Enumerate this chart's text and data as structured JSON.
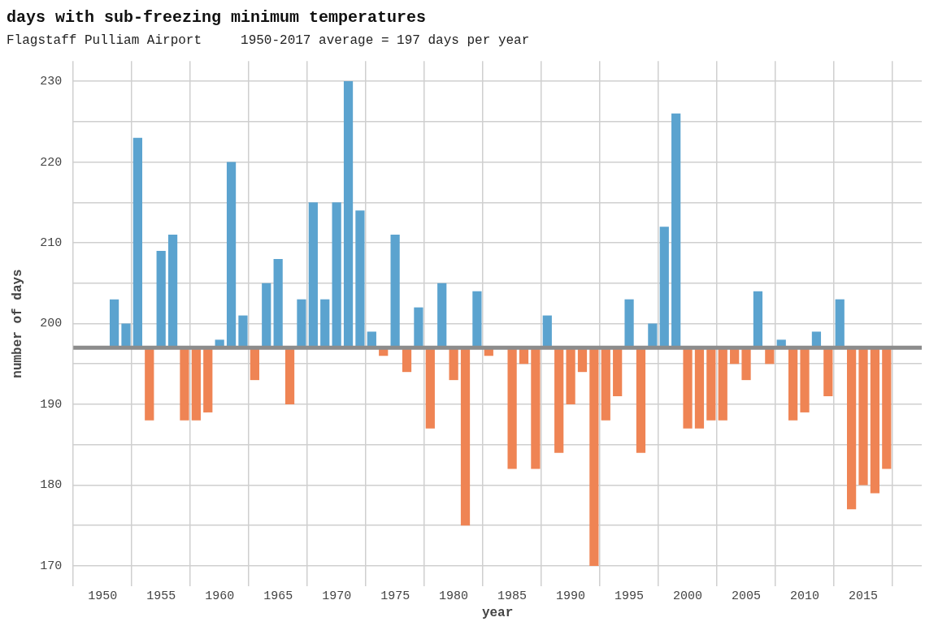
{
  "chart_data": {
    "type": "bar",
    "title": "days with sub-freezing minimum temperatures",
    "subtitle": "Flagstaff Pulliam Airport     1950-2017 average = 197 days per year",
    "xlabel": "year",
    "ylabel": "number of days",
    "x": [
      1951,
      1952,
      1953,
      1954,
      1955,
      1956,
      1957,
      1958,
      1959,
      1960,
      1961,
      1962,
      1963,
      1964,
      1965,
      1966,
      1967,
      1968,
      1969,
      1970,
      1971,
      1972,
      1973,
      1974,
      1975,
      1976,
      1977,
      1978,
      1979,
      1980,
      1981,
      1982,
      1983,
      1984,
      1985,
      1986,
      1987,
      1988,
      1989,
      1990,
      1991,
      1992,
      1993,
      1994,
      1995,
      1996,
      1997,
      1998,
      1999,
      2000,
      2001,
      2002,
      2003,
      2004,
      2005,
      2006,
      2007,
      2008,
      2009,
      2010,
      2011,
      2012,
      2013,
      2014,
      2015,
      2016,
      2017
    ],
    "base": [
      197,
      197,
      197,
      197,
      197,
      197,
      197,
      197,
      197,
      197,
      197,
      197,
      197,
      197,
      197,
      197,
      197,
      197,
      197,
      197,
      197,
      197,
      197,
      197,
      197,
      197,
      197,
      197,
      197,
      197,
      197,
      197,
      197,
      null,
      197,
      197,
      197,
      197,
      197,
      197,
      197,
      197,
      197,
      197,
      197,
      197,
      197,
      197,
      197,
      197,
      197,
      197,
      197,
      197,
      197,
      197,
      197,
      197,
      197,
      197,
      197,
      197,
      197,
      197,
      197,
      197,
      197
    ],
    "values": [
      6,
      3,
      26,
      -9,
      12,
      14,
      -9,
      -9,
      -8,
      1,
      23,
      4,
      -4,
      8,
      11,
      -7,
      6,
      18,
      6,
      18,
      33,
      17,
      2,
      -1,
      14,
      -3,
      5,
      -10,
      8,
      -4,
      -22,
      7,
      -1,
      null,
      -15,
      -2,
      -15,
      4,
      -13,
      -7,
      -3,
      -27,
      -9,
      -6,
      6,
      -13,
      3,
      15,
      29,
      -10,
      -10,
      -9,
      -9,
      -2,
      -4,
      7,
      -2,
      1,
      -9,
      -8,
      2,
      -6,
      6,
      -20,
      -17,
      -18,
      -15
    ],
    "colors": [
      "#5ba3cf",
      "#5ba3cf",
      "#5ba3cf",
      "#ef8454",
      "#5ba3cf",
      "#5ba3cf",
      "#ef8454",
      "#ef8454",
      "#ef8454",
      "#5ba3cf",
      "#5ba3cf",
      "#5ba3cf",
      "#ef8454",
      "#5ba3cf",
      "#5ba3cf",
      "#ef8454",
      "#5ba3cf",
      "#5ba3cf",
      "#5ba3cf",
      "#5ba3cf",
      "#5ba3cf",
      "#5ba3cf",
      "#5ba3cf",
      "#ef8454",
      "#5ba3cf",
      "#ef8454",
      "#5ba3cf",
      "#ef8454",
      "#5ba3cf",
      "#ef8454",
      "#ef8454",
      "#5ba3cf",
      "#ef8454",
      "#5ba3cf",
      "#ef8454",
      "#ef8454",
      "#ef8454",
      "#5ba3cf",
      "#ef8454",
      "#ef8454",
      "#ef8454",
      "#ef8454",
      "#ef8454",
      "#ef8454",
      "#5ba3cf",
      "#ef8454",
      "#5ba3cf",
      "#5ba3cf",
      "#5ba3cf",
      "#ef8454",
      "#ef8454",
      "#ef8454",
      "#ef8454",
      "#ef8454",
      "#ef8454",
      "#5ba3cf",
      "#ef8454",
      "#5ba3cf",
      "#ef8454",
      "#ef8454",
      "#5ba3cf",
      "#ef8454",
      "#5ba3cf",
      "#ef8454",
      "#ef8454",
      "#ef8454",
      "#ef8454"
    ],
    "xlim": [
      1947.5,
      2020
    ],
    "xticks": [
      1950,
      1955,
      1960,
      1965,
      1970,
      1975,
      1980,
      1985,
      1990,
      1995,
      2000,
      2005,
      2010,
      2015
    ],
    "ylim": [
      167.5,
      232.5
    ],
    "yticks": [
      170,
      {
        "value": 175,
        "label": null
      },
      180,
      {
        "value": 185,
        "label": null
      },
      190,
      {
        "value": 195,
        "label": null
      },
      200,
      {
        "value": 205,
        "label": null
      },
      210,
      {
        "value": 215,
        "label": null
      },
      220,
      {
        "value": 225,
        "label": null
      },
      230
    ],
    "ref_lines": [
      {
        "axis": "y",
        "value": 197,
        "color": "#8c8c8c"
      }
    ],
    "grid": true,
    "legend": false
  }
}
